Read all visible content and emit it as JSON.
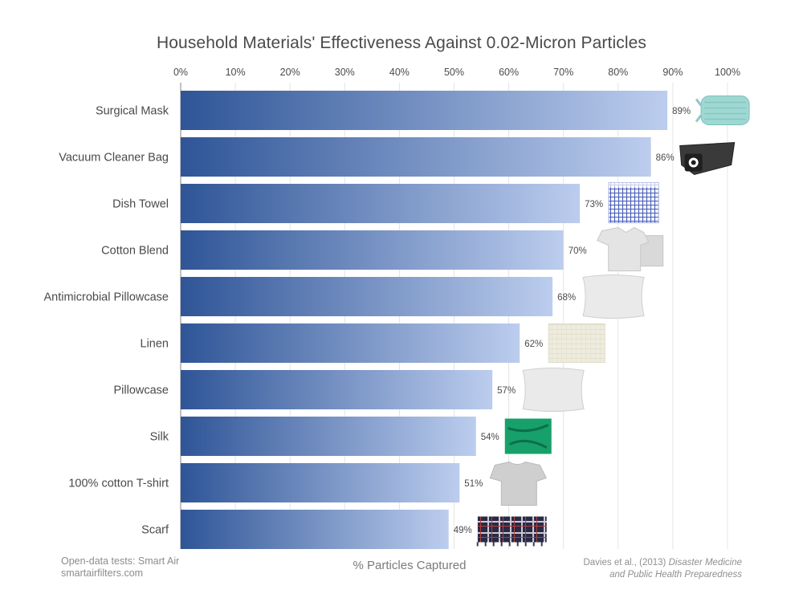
{
  "chart_data": {
    "type": "bar",
    "orientation": "horizontal",
    "title": "Household Materials' Effectiveness Against 0.02-Micron Particles",
    "xlabel": "% Particles Captured",
    "ylabel": "",
    "xlim": [
      0,
      100
    ],
    "xticks": [
      "0%",
      "10%",
      "20%",
      "30%",
      "40%",
      "50%",
      "60%",
      "70%",
      "80%",
      "90%",
      "100%"
    ],
    "grid": true,
    "categories": [
      "Surgical Mask",
      "Vacuum Cleaner Bag",
      "Dish Towel",
      "Cotton Blend",
      "Antimicrobial Pillowcase",
      "Linen",
      "Pillowcase",
      "Silk",
      "100% cotton T-shirt",
      "Scarf"
    ],
    "values": [
      89,
      86,
      73,
      70,
      68,
      62,
      57,
      54,
      51,
      49
    ],
    "value_labels": [
      "89%",
      "86%",
      "73%",
      "70%",
      "68%",
      "62%",
      "57%",
      "54%",
      "51%",
      "49%"
    ],
    "images": [
      "surgical-mask",
      "vacuum-bag",
      "dish-towel",
      "cotton-blend-shirt",
      "pillow",
      "linen-swatch",
      "pillow",
      "silk-swatch",
      "t-shirt",
      "plaid-scarf"
    ]
  },
  "colors": {
    "bar_dark": "#2f5597",
    "bar_light": "#bccdee",
    "grid": "#e4e4e4",
    "text": "#4a4a4a"
  },
  "footer": {
    "source_line1": "Open-data tests: Smart Air",
    "source_line2": "smartairfilters.com",
    "citation_prefix": "Davies et al., (2013)",
    "citation_journal_1": "Disaster Medicine",
    "citation_journal_2": "and Public Health Preparedness"
  }
}
